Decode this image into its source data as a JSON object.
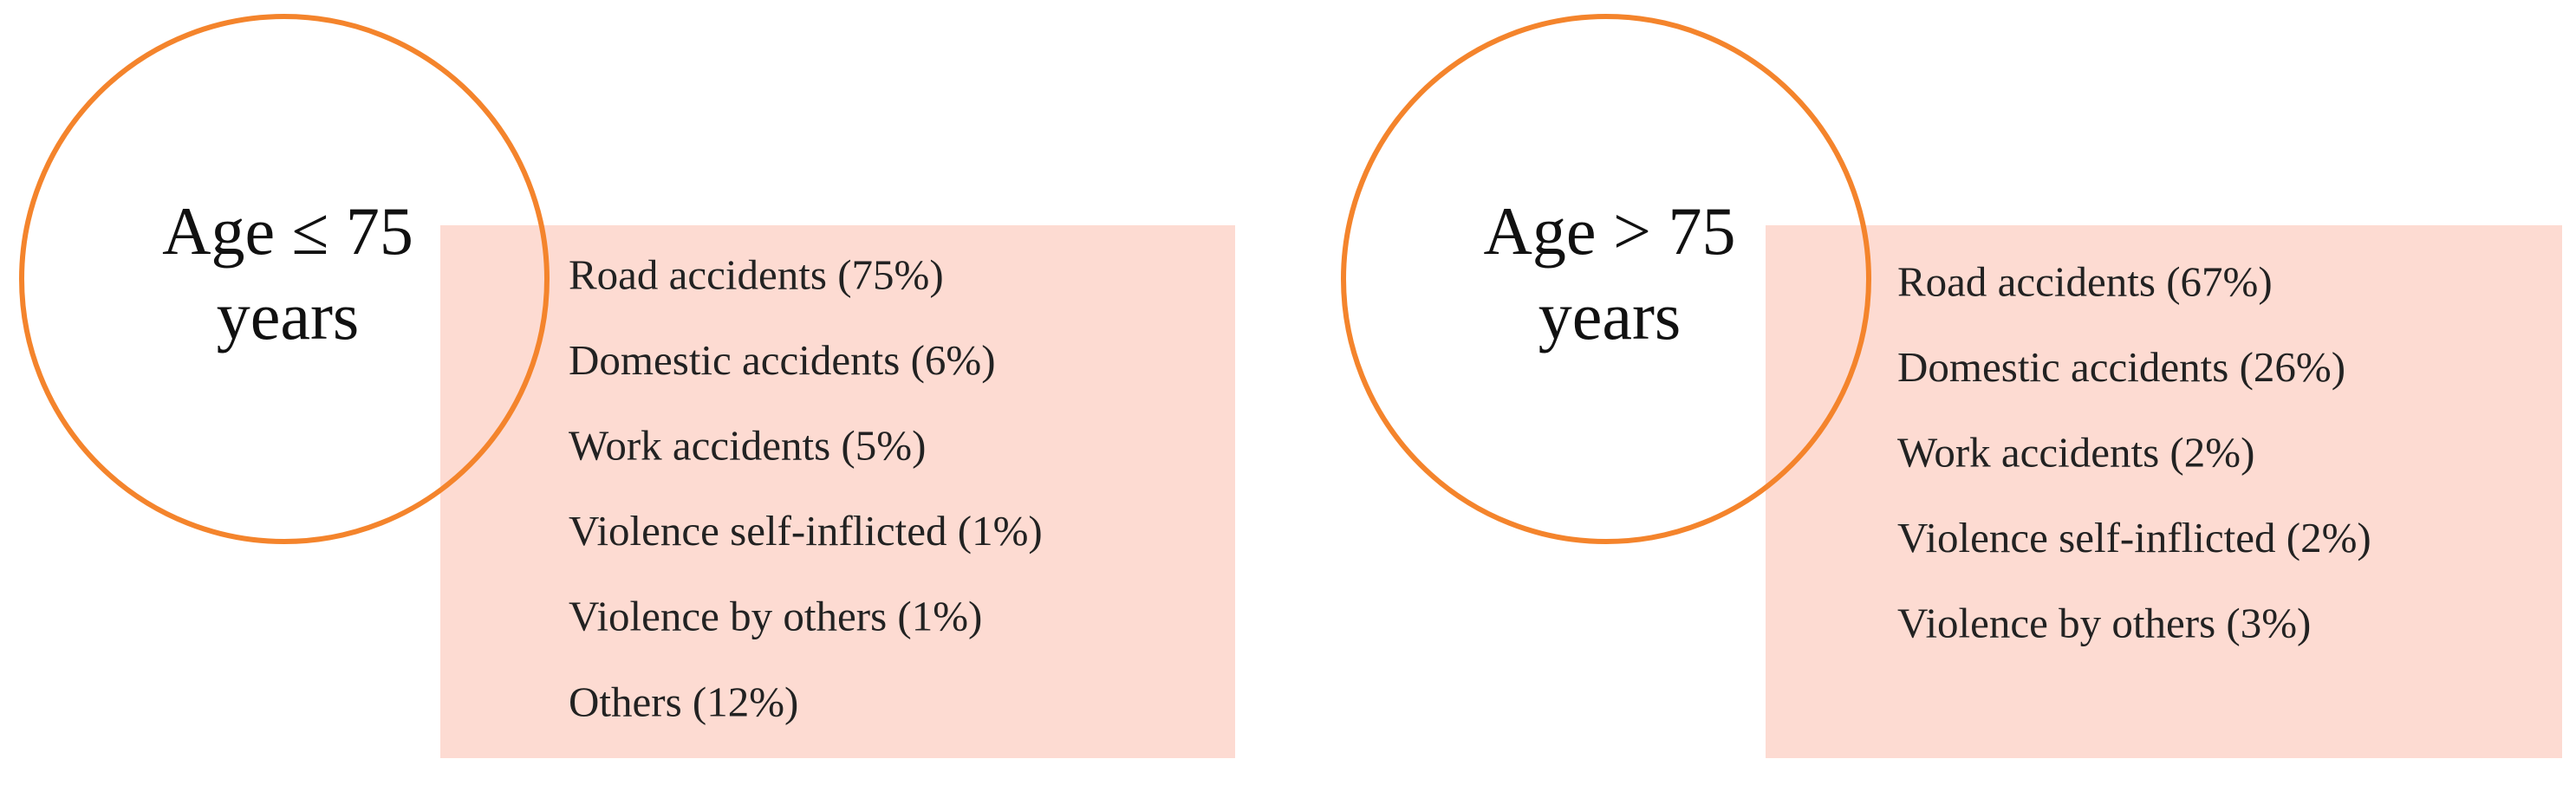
{
  "panels": [
    {
      "label_lines": [
        "Age ≤ 75",
        "years"
      ],
      "items": [
        "Road accidents (75%)",
        "Domestic accidents (6%)",
        "Work accidents (5%)",
        "Violence self-inflicted (1%)",
        "Violence by others (1%)",
        "Others (12%)"
      ]
    },
    {
      "label_lines": [
        "Age > 75",
        "years"
      ],
      "items": [
        "Road accidents (67%)",
        "Domestic accidents (26%)",
        "Work accidents (2%)",
        "Violence self-inflicted (2%)",
        "Violence by others (3%)"
      ]
    }
  ]
}
